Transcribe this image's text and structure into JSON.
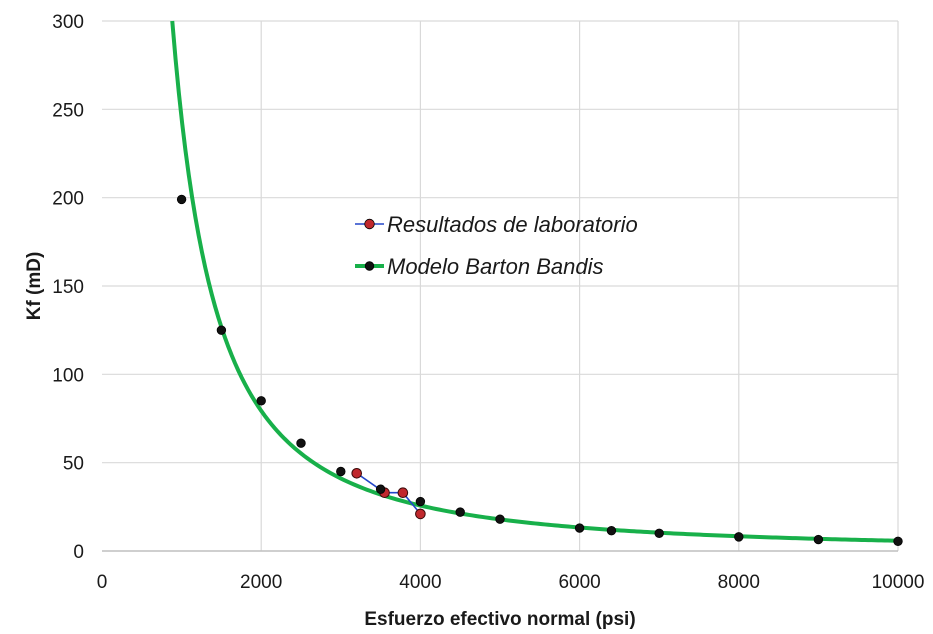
{
  "chart_data": {
    "type": "scatter",
    "title": "",
    "xlabel": "Esfuerzo efectivo normal (psi)",
    "ylabel": "Kf (mD)",
    "xlim": [
      0,
      10000
    ],
    "ylim": [
      0,
      300
    ],
    "x_ticks": [
      0,
      2000,
      4000,
      6000,
      8000,
      10000
    ],
    "y_ticks": [
      0,
      50,
      100,
      150,
      200,
      250,
      300
    ],
    "grid": true,
    "legend_position": "center",
    "series": [
      {
        "name": "Resultados de laboratorio",
        "line_color": "#2346c8",
        "marker_color": "#c0282d",
        "points": [
          {
            "x": 3200,
            "y": 44
          },
          {
            "x": 3550,
            "y": 33
          },
          {
            "x": 3780,
            "y": 33
          },
          {
            "x": 4000,
            "y": 21
          }
        ]
      },
      {
        "name": "Modelo Barton Bandis",
        "line_color": "#18b04a",
        "marker_color": "#111111",
        "points": [
          {
            "x": 1000,
            "y": 199
          },
          {
            "x": 1500,
            "y": 125
          },
          {
            "x": 2000,
            "y": 85
          },
          {
            "x": 2500,
            "y": 61
          },
          {
            "x": 3000,
            "y": 45
          },
          {
            "x": 3500,
            "y": 35
          },
          {
            "x": 4000,
            "y": 28
          },
          {
            "x": 4500,
            "y": 22
          },
          {
            "x": 5000,
            "y": 18
          },
          {
            "x": 6000,
            "y": 13
          },
          {
            "x": 6400,
            "y": 11.5
          },
          {
            "x": 7000,
            "y": 10
          },
          {
            "x": 8000,
            "y": 8
          },
          {
            "x": 9000,
            "y": 6.5
          },
          {
            "x": 10000,
            "y": 5.5
          }
        ]
      }
    ]
  }
}
